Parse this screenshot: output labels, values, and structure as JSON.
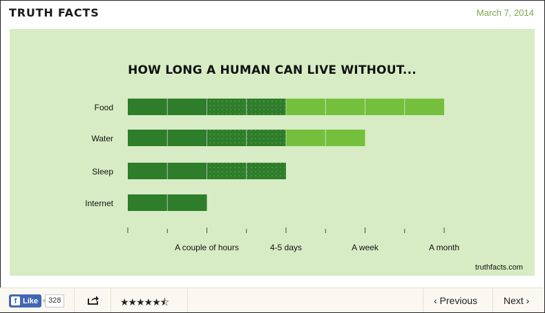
{
  "header": {
    "brand": "TRUTH FACTS",
    "date": "March 7, 2014"
  },
  "chart_data": {
    "type": "bar",
    "orientation": "horizontal",
    "title": "HOW LONG A HUMAN CAN LIVE WITHOUT...",
    "categories": [
      "Food",
      "Water",
      "Sleep",
      "Internet"
    ],
    "values": [
      8,
      6,
      4,
      2
    ],
    "value_unit": "segments",
    "x_scale": "ordinal",
    "xlim": [
      0,
      8
    ],
    "x_ticks": [
      0,
      1,
      2,
      3,
      4,
      5,
      6,
      7,
      8
    ],
    "x_tick_labels": [
      {
        "at": 2,
        "label": "A couple of hours"
      },
      {
        "at": 4,
        "label": "4-5 days"
      },
      {
        "at": 6,
        "label": "A week"
      },
      {
        "at": 8,
        "label": "A month"
      }
    ],
    "credit": "truthfacts.com",
    "colors": {
      "dark": "#2e7d2a",
      "light": "#74c03c",
      "background": "#d7ecc4"
    }
  },
  "footer": {
    "like_label": "Like",
    "like_count": "328",
    "rating_stars": "★★★★★⯪",
    "prev_label": "‹ Previous",
    "next_label": "Next ›"
  }
}
